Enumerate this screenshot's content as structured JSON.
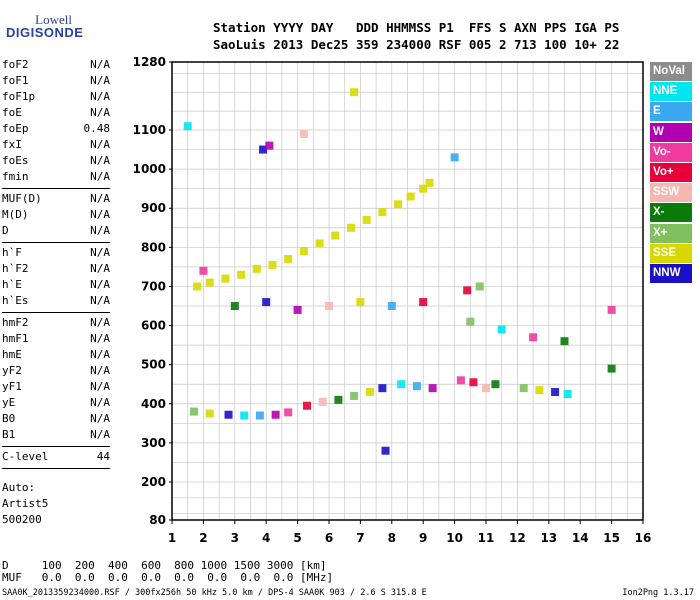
{
  "logo": {
    "line1": "Lowell",
    "line2": "DIGISONDE"
  },
  "header": {
    "line1": "Station YYYY DAY   DDD HHMMSS P1  FFS S AXN PPS IGA PS",
    "line2": "SaoLuis 2013 Dec25 359 234000 RSF 005 2 713 100 10+ 22"
  },
  "params": [
    {
      "name": "foF2",
      "value": "N/A"
    },
    {
      "name": "foF1",
      "value": "N/A"
    },
    {
      "name": "foF1p",
      "value": "N/A"
    },
    {
      "name": "foE",
      "value": "N/A"
    },
    {
      "name": "foEp",
      "value": "0.48"
    },
    {
      "name": "fxI",
      "value": "N/A"
    },
    {
      "name": "foEs",
      "value": "N/A"
    },
    {
      "name": "fmin",
      "value": "N/A",
      "sep": true
    },
    {
      "name": "MUF(D)",
      "value": "N/A"
    },
    {
      "name": "M(D)",
      "value": "N/A"
    },
    {
      "name": "D",
      "value": "N/A",
      "sep": true
    },
    {
      "name": "h`F",
      "value": "N/A"
    },
    {
      "name": "h`F2",
      "value": "N/A"
    },
    {
      "name": "h`E",
      "value": "N/A"
    },
    {
      "name": "h`Es",
      "value": "N/A",
      "sep": true
    },
    {
      "name": "hmF2",
      "value": "N/A"
    },
    {
      "name": "hmF1",
      "value": "N/A"
    },
    {
      "name": "hmE",
      "value": "N/A"
    },
    {
      "name": "yF2",
      "value": "N/A"
    },
    {
      "name": "yF1",
      "value": "N/A"
    },
    {
      "name": "yE",
      "value": "N/A"
    },
    {
      "name": "B0",
      "value": "N/A"
    },
    {
      "name": "B1",
      "value": "N/A",
      "sep": true
    },
    {
      "name": "C-level",
      "value": "44",
      "sep": true
    }
  ],
  "auto": {
    "line1": "Auto:",
    "line2": "Artist5",
    "line3": "500200"
  },
  "legend": [
    {
      "label": "NoVal",
      "color": "#8c8c8c"
    },
    {
      "label": "NNE",
      "color": "#00e5f0"
    },
    {
      "label": "E",
      "color": "#3aa8f0"
    },
    {
      "label": "W",
      "color": "#b000b0"
    },
    {
      "label": "Vo-",
      "color": "#f03aa0"
    },
    {
      "label": "Vo+",
      "color": "#e8003a"
    },
    {
      "label": "SSW",
      "color": "#f5b8b0"
    },
    {
      "label": "X-",
      "color": "#0a7a0a"
    },
    {
      "label": "X+",
      "color": "#80c060"
    },
    {
      "label": "SSE",
      "color": "#d8d800"
    },
    {
      "label": "NNW",
      "color": "#1a10c8"
    }
  ],
  "footer": {
    "d_line": "D     100  200  400  600  800 1000 1500 3000 [km]",
    "muf_line": "MUF   0.0  0.0  0.0  0.0  0.0  0.0  0.0  0.0 [MHz]",
    "file_line": "SAA0K_2013359234000.RSF / 300fx256h 50 kHz 5.0 km / DPS-4 SAA0K 903 / 2.6 S 315.8 E",
    "version": "Ion2Png 1.3.17"
  },
  "chart_data": {
    "type": "scatter",
    "xlim": [
      1,
      16
    ],
    "ylim": [
      80,
      1280
    ],
    "x_ticks": [
      "1",
      "2",
      "3",
      "4",
      "5",
      "6",
      "7",
      "8",
      "9",
      "10",
      "11",
      "12",
      "13",
      "14",
      "15",
      "16"
    ],
    "y_ticks": [
      "80",
      "200",
      "300",
      "400",
      "500",
      "600",
      "700",
      "800",
      "900",
      "1000",
      "1100",
      "1280"
    ],
    "grid": true,
    "legend_position": "right",
    "x": [
      1.8,
      2.2,
      2.7,
      3.2,
      3.7,
      4.2,
      4.7,
      5.2,
      5.7,
      6.2,
      6.7,
      7.2,
      7.7,
      8.2,
      8.6,
      9.0,
      9.2,
      1.7,
      2.2,
      2.8,
      3.3,
      3.8,
      4.3,
      4.7,
      5.3,
      5.8,
      6.3,
      6.8,
      7.3,
      7.7,
      8.3,
      8.8,
      9.3,
      10.2,
      10.6,
      11.0,
      11.3,
      12.2,
      12.7,
      13.2,
      13.6,
      2.0,
      3.0,
      4.0,
      5.0,
      6.0,
      7.0,
      8.0,
      9.0,
      10.5,
      11.5,
      12.5,
      13.5,
      3.9,
      4.1,
      5.2,
      6.8,
      10.0,
      10.4,
      10.8,
      1.5,
      15.0,
      15.0,
      7.8
    ],
    "y": [
      700,
      710,
      720,
      730,
      745,
      755,
      770,
      790,
      810,
      830,
      850,
      870,
      890,
      910,
      930,
      950,
      965,
      380,
      375,
      372,
      370,
      370,
      372,
      378,
      395,
      405,
      410,
      420,
      430,
      440,
      450,
      445,
      440,
      460,
      455,
      440,
      450,
      440,
      435,
      430,
      425,
      740,
      650,
      660,
      640,
      650,
      660,
      650,
      660,
      610,
      590,
      570,
      560,
      1050,
      1060,
      1090,
      1200,
      1030,
      690,
      700,
      1110,
      640,
      490,
      280
    ]
  }
}
